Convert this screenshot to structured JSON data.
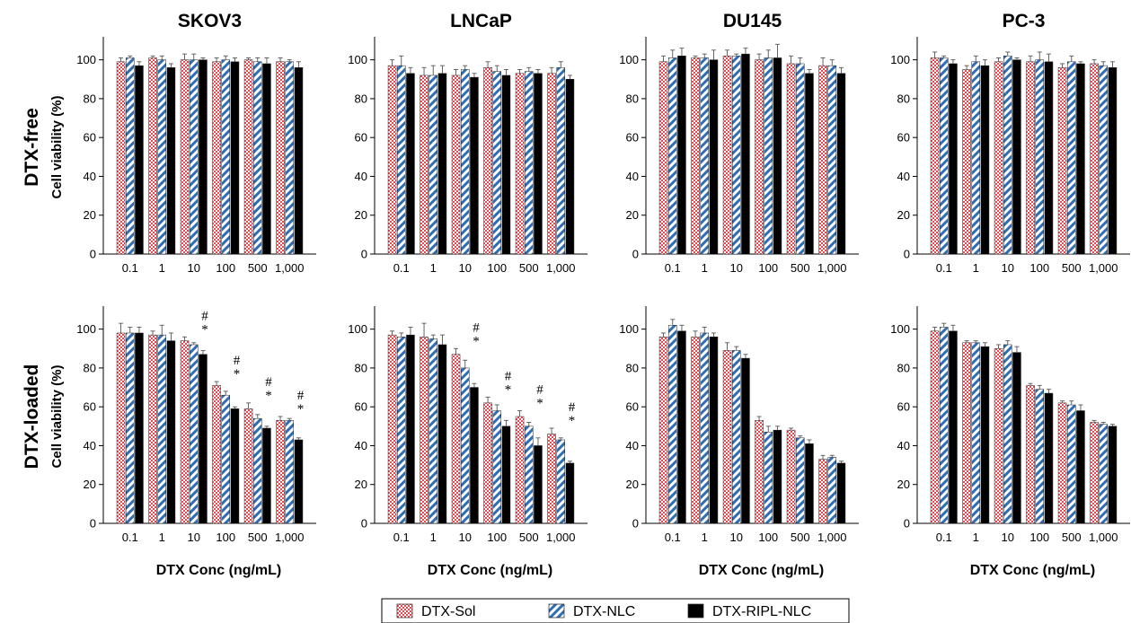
{
  "legend": {
    "items": [
      {
        "label": "DTX-Sol",
        "pattern": "checker",
        "color": "#e8474f"
      },
      {
        "label": "DTX-NLC",
        "pattern": "stripe",
        "color": "#2f6db5"
      },
      {
        "label": "DTX-RIPL-NLC",
        "pattern": "solid",
        "color": "#000000"
      }
    ]
  },
  "row_labels": [
    "DTX-free",
    "DTX-loaded"
  ],
  "y_axis_label": "Cell viability (%)",
  "x_axis_label": "DTX Conc (ng/mL)",
  "chart_data": [
    {
      "type": "bar",
      "row": "DTX-free",
      "title": "SKOV3",
      "ylabel": "Cell viability (%)",
      "xlabel": "",
      "ylim": [
        0,
        110
      ],
      "yticks": [
        0,
        20,
        40,
        60,
        80,
        100
      ],
      "categories": [
        "0.1",
        "1",
        "10",
        "100",
        "500",
        "1,000"
      ],
      "series": [
        {
          "name": "DTX-Sol",
          "values": [
            99,
            101,
            100,
            99,
            100,
            99
          ],
          "errors": [
            2,
            1,
            3,
            2,
            1,
            2
          ]
        },
        {
          "name": "DTX-NLC",
          "values": [
            101,
            100,
            100,
            100,
            99,
            99
          ],
          "errors": [
            1,
            2,
            3,
            2,
            2,
            1
          ]
        },
        {
          "name": "DTX-RIPL-NLC",
          "values": [
            97,
            96,
            100,
            99,
            98,
            96
          ],
          "errors": [
            2,
            2,
            1,
            2,
            3,
            3
          ]
        }
      ],
      "annotations": []
    },
    {
      "type": "bar",
      "row": "DTX-free",
      "title": "LNCaP",
      "ylabel": "",
      "xlabel": "",
      "ylim": [
        0,
        110
      ],
      "yticks": [
        0,
        20,
        40,
        60,
        80,
        100
      ],
      "categories": [
        "0.1",
        "1",
        "10",
        "100",
        "500",
        "1,000"
      ],
      "series": [
        {
          "name": "DTX-Sol",
          "values": [
            97,
            92,
            92,
            96,
            93,
            93
          ],
          "errors": [
            3,
            4,
            3,
            3,
            2,
            3
          ]
        },
        {
          "name": "DTX-NLC",
          "values": [
            97,
            92,
            95,
            94,
            94,
            96
          ],
          "errors": [
            5,
            5,
            2,
            3,
            2,
            3
          ]
        },
        {
          "name": "DTX-RIPL-NLC",
          "values": [
            93,
            93,
            91,
            92,
            93,
            90
          ],
          "errors": [
            3,
            4,
            2,
            3,
            2,
            2
          ]
        }
      ],
      "annotations": []
    },
    {
      "type": "bar",
      "row": "DTX-free",
      "title": "DU145",
      "ylabel": "",
      "xlabel": "",
      "ylim": [
        0,
        110
      ],
      "yticks": [
        0,
        20,
        40,
        60,
        80,
        100
      ],
      "categories": [
        "0.1",
        "1",
        "10",
        "100",
        "500",
        "1,000"
      ],
      "series": [
        {
          "name": "DTX-Sol",
          "values": [
            99,
            101,
            102,
            100,
            98,
            97
          ],
          "errors": [
            3,
            1,
            3,
            3,
            4,
            4
          ]
        },
        {
          "name": "DTX-NLC",
          "values": [
            101,
            101,
            102,
            101,
            98,
            97
          ],
          "errors": [
            4,
            2,
            1,
            4,
            3,
            3
          ]
        },
        {
          "name": "DTX-RIPL-NLC",
          "values": [
            102,
            100,
            103,
            101,
            93,
            93
          ],
          "errors": [
            4,
            5,
            3,
            7,
            2,
            3
          ]
        }
      ],
      "annotations": []
    },
    {
      "type": "bar",
      "row": "DTX-free",
      "title": "PC-3",
      "ylabel": "",
      "xlabel": "",
      "ylim": [
        0,
        110
      ],
      "yticks": [
        0,
        20,
        40,
        60,
        80,
        100
      ],
      "categories": [
        "0.1",
        "1",
        "10",
        "100",
        "500",
        "1,000"
      ],
      "series": [
        {
          "name": "DTX-Sol",
          "values": [
            101,
            95,
            99,
            99,
            96,
            98
          ],
          "errors": [
            3,
            2,
            2,
            3,
            2,
            2
          ]
        },
        {
          "name": "DTX-NLC",
          "values": [
            101,
            99,
            102,
            100,
            99,
            97
          ],
          "errors": [
            1,
            3,
            2,
            4,
            3,
            2
          ]
        },
        {
          "name": "DTX-RIPL-NLC",
          "values": [
            98,
            97,
            100,
            99,
            98,
            96
          ],
          "errors": [
            2,
            3,
            1,
            4,
            1,
            3
          ]
        }
      ],
      "annotations": []
    },
    {
      "type": "bar",
      "row": "DTX-loaded",
      "title": "",
      "ylabel": "Cell viability (%)",
      "xlabel": "DTX Conc (ng/mL)",
      "ylim": [
        0,
        110
      ],
      "yticks": [
        0,
        20,
        40,
        60,
        80,
        100
      ],
      "categories": [
        "0.1",
        "1",
        "10",
        "100",
        "500",
        "1,000"
      ],
      "series": [
        {
          "name": "DTX-Sol",
          "values": [
            98,
            97,
            94,
            71,
            59,
            53
          ],
          "errors": [
            5,
            2,
            2,
            2,
            3,
            2
          ]
        },
        {
          "name": "DTX-NLC",
          "values": [
            98,
            97,
            92,
            66,
            54,
            53
          ],
          "errors": [
            3,
            5,
            1,
            2,
            2,
            1
          ]
        },
        {
          "name": "DTX-RIPL-NLC",
          "values": [
            98,
            94,
            87,
            59,
            49,
            43
          ],
          "errors": [
            3,
            4,
            2,
            1,
            1,
            1
          ]
        }
      ],
      "annotations": [
        {
          "category": "10",
          "marks": [
            "#",
            "*"
          ]
        },
        {
          "category": "100",
          "marks": [
            "#",
            "*"
          ]
        },
        {
          "category": "500",
          "marks": [
            "#",
            "*"
          ]
        },
        {
          "category": "1,000",
          "marks": [
            "#",
            "*"
          ]
        }
      ]
    },
    {
      "type": "bar",
      "row": "DTX-loaded",
      "title": "",
      "ylabel": "",
      "xlabel": "DTX Conc (ng/mL)",
      "ylim": [
        0,
        110
      ],
      "yticks": [
        0,
        20,
        40,
        60,
        80,
        100
      ],
      "categories": [
        "0.1",
        "1",
        "10",
        "100",
        "500",
        "1,000"
      ],
      "series": [
        {
          "name": "DTX-Sol",
          "values": [
            97,
            96,
            87,
            62,
            55,
            46
          ],
          "errors": [
            2,
            7,
            3,
            3,
            3,
            3
          ]
        },
        {
          "name": "DTX-NLC",
          "values": [
            96,
            95,
            80,
            58,
            50,
            43
          ],
          "errors": [
            2,
            2,
            4,
            3,
            2,
            1
          ]
        },
        {
          "name": "DTX-RIPL-NLC",
          "values": [
            97,
            92,
            70,
            50,
            40,
            31
          ],
          "errors": [
            4,
            5,
            2,
            3,
            4,
            1
          ]
        }
      ],
      "annotations": [
        {
          "category": "10",
          "marks": [
            "#",
            "*"
          ]
        },
        {
          "category": "100",
          "marks": [
            "#",
            "*"
          ]
        },
        {
          "category": "500",
          "marks": [
            "#",
            "*"
          ]
        },
        {
          "category": "1,000",
          "marks": [
            "#",
            "*"
          ]
        }
      ]
    },
    {
      "type": "bar",
      "row": "DTX-loaded",
      "title": "",
      "ylabel": "",
      "xlabel": "DTX Conc (ng/mL)",
      "ylim": [
        0,
        110
      ],
      "yticks": [
        0,
        20,
        40,
        60,
        80,
        100
      ],
      "categories": [
        "0.1",
        "1",
        "10",
        "100",
        "500",
        "1,000"
      ],
      "series": [
        {
          "name": "DTX-Sol",
          "values": [
            96,
            96,
            89,
            53,
            48,
            33
          ],
          "errors": [
            2,
            3,
            4,
            2,
            1,
            2
          ]
        },
        {
          "name": "DTX-NLC",
          "values": [
            102,
            98,
            89,
            47,
            44,
            34
          ],
          "errors": [
            3,
            3,
            2,
            3,
            1,
            1
          ]
        },
        {
          "name": "DTX-RIPL-NLC",
          "values": [
            99,
            96,
            85,
            48,
            41,
            31
          ],
          "errors": [
            3,
            2,
            2,
            2,
            2,
            1
          ]
        }
      ],
      "annotations": []
    },
    {
      "type": "bar",
      "row": "DTX-loaded",
      "title": "",
      "ylabel": "",
      "xlabel": "DTX Conc (ng/mL)",
      "ylim": [
        0,
        110
      ],
      "yticks": [
        0,
        20,
        40,
        60,
        80,
        100
      ],
      "categories": [
        "0.1",
        "1",
        "10",
        "100",
        "500",
        "1,000"
      ],
      "series": [
        {
          "name": "DTX-Sol",
          "values": [
            99,
            93,
            90,
            71,
            62,
            52
          ],
          "errors": [
            2,
            1,
            2,
            1,
            1,
            1
          ]
        },
        {
          "name": "DTX-NLC",
          "values": [
            101,
            93,
            92,
            69,
            61,
            51
          ],
          "errors": [
            2,
            1,
            2,
            2,
            2,
            1
          ]
        },
        {
          "name": "DTX-RIPL-NLC",
          "values": [
            99,
            91,
            88,
            67,
            58,
            50
          ],
          "errors": [
            3,
            2,
            3,
            2,
            3,
            1
          ]
        }
      ],
      "annotations": []
    }
  ]
}
